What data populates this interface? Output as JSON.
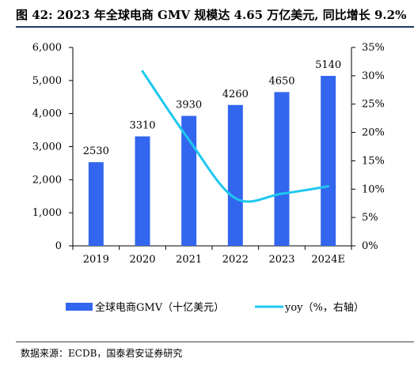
{
  "header": {
    "title": "图 42: 2023 年全球电商 GMV 规模达 4.65 万亿美元, 同比增长 9.2%"
  },
  "footer": {
    "source": "数据来源：ECDB，国泰君安证券研究"
  },
  "colors": {
    "bar": "#3366ee",
    "line": "#1ec8f0",
    "axis": "#000000",
    "title_rule": "#1f3864"
  },
  "chart_data": {
    "type": "bar",
    "categories": [
      "2019",
      "2020",
      "2021",
      "2022",
      "2023",
      "2024E"
    ],
    "series": [
      {
        "name": "全球电商GMV（十亿美元）",
        "type": "bar",
        "axis": "left",
        "values": [
          2530,
          3310,
          3930,
          4260,
          4650,
          5140
        ],
        "labels": [
          "2530",
          "3310",
          "3930",
          "4260",
          "4650",
          "5140"
        ]
      },
      {
        "name": "yoy（%，右轴）",
        "type": "line",
        "axis": "right",
        "values": [
          null,
          30.8,
          18.7,
          8.4,
          9.2,
          10.5
        ]
      }
    ],
    "y_left": {
      "min": 0,
      "max": 6000,
      "ticks": [
        0,
        1000,
        2000,
        3000,
        4000,
        5000,
        6000
      ],
      "tick_labels": [
        "0",
        "1,000",
        "2,000",
        "3,000",
        "4,000",
        "5,000",
        "6,000"
      ]
    },
    "y_right": {
      "min": 0,
      "max": 35,
      "ticks": [
        0,
        5,
        10,
        15,
        20,
        25,
        30,
        35
      ],
      "tick_labels": [
        "0%",
        "5%",
        "10%",
        "15%",
        "20%",
        "25%",
        "30%",
        "35%"
      ]
    },
    "grid": false,
    "legend_position": "bottom"
  }
}
